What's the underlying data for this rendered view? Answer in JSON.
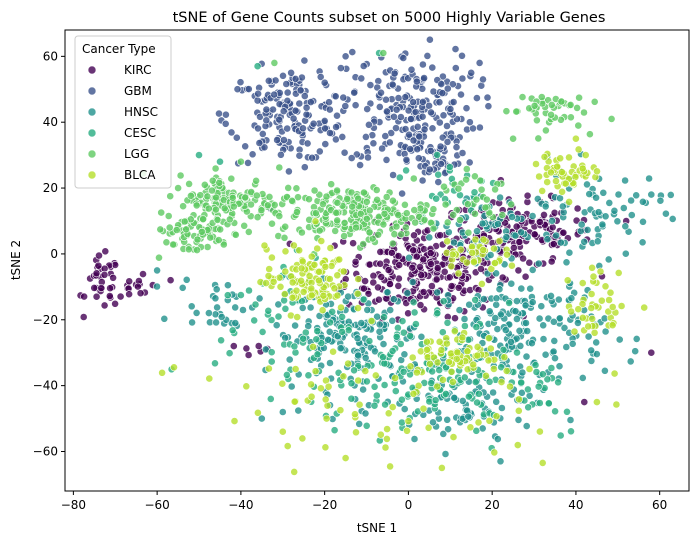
{
  "chart_data": {
    "type": "scatter",
    "title": "tSNE of Gene Counts subset on 5000 Highly Variable Genes",
    "xlabel": "tSNE 1",
    "ylabel": "tSNE 2",
    "xlim": [
      -82,
      67
    ],
    "ylim": [
      -72,
      68
    ],
    "xticks": [
      -80,
      -60,
      -40,
      -20,
      0,
      20,
      40,
      60
    ],
    "yticks": [
      -60,
      -40,
      -20,
      0,
      20,
      40,
      60
    ],
    "grid": false,
    "legend": {
      "title": "Cancer Type",
      "position": "top-left"
    },
    "series": [
      {
        "name": "KIRC",
        "color": "#440154",
        "clusters": [
          {
            "cx": 3,
            "cy": -5,
            "sx": 9,
            "sy": 7,
            "n": 260
          },
          {
            "cx": 26,
            "cy": 6,
            "sx": 9,
            "sy": 5,
            "n": 150
          },
          {
            "cx": -73,
            "cy": -9,
            "sx": 2,
            "sy": 4,
            "n": 35
          },
          {
            "cx": -64,
            "cy": -10,
            "sx": 3,
            "sy": 3,
            "n": 15
          },
          {
            "cx": -36,
            "cy": -29,
            "sx": 2,
            "sy": 1,
            "n": 6
          }
        ],
        "points": [
          [
            58,
            -30
          ],
          [
            42,
            -45
          ],
          [
            52,
            10
          ]
        ]
      },
      {
        "name": "GBM",
        "color": "#3b528b",
        "clusters": [
          {
            "cx": -29,
            "cy": 42,
            "sx": 7,
            "sy": 7,
            "n": 170
          },
          {
            "cx": 0,
            "cy": 44,
            "sx": 8,
            "sy": 9,
            "n": 210
          },
          {
            "cx": 6,
            "cy": 28,
            "sx": 5,
            "sy": 4,
            "n": 40
          }
        ],
        "points": [
          [
            -15,
            60
          ],
          [
            -28,
            55
          ],
          [
            15,
            55
          ],
          [
            17,
            58
          ],
          [
            -20,
            52
          ]
        ]
      },
      {
        "name": "HNSC",
        "color": "#21918c",
        "clusters": [
          {
            "cx": -14,
            "cy": -25,
            "sx": 9,
            "sy": 8,
            "n": 180
          },
          {
            "cx": 27,
            "cy": -23,
            "sx": 10,
            "sy": 9,
            "n": 190
          },
          {
            "cx": 12,
            "cy": -48,
            "sx": 9,
            "sy": 6,
            "n": 80
          },
          {
            "cx": 45,
            "cy": 12,
            "sx": 8,
            "sy": 7,
            "n": 70
          },
          {
            "cx": -45,
            "cy": -15,
            "sx": 5,
            "sy": 4,
            "n": 30
          },
          {
            "cx": 18,
            "cy": 8,
            "sx": 7,
            "sy": 6,
            "n": 60
          }
        ],
        "points": [
          [
            58,
            18
          ],
          [
            -60,
            -5
          ],
          [
            -35,
            -50
          ],
          [
            -30,
            -48
          ],
          [
            5,
            5
          ]
        ]
      },
      {
        "name": "CESC",
        "color": "#27ad81",
        "clusters": [
          {
            "cx": 0,
            "cy": -35,
            "sx": 12,
            "sy": 10,
            "n": 140
          },
          {
            "cx": -30,
            "cy": -20,
            "sx": 8,
            "sy": 10,
            "n": 50
          },
          {
            "cx": 25,
            "cy": -40,
            "sx": 10,
            "sy": 8,
            "n": 40
          },
          {
            "cx": 10,
            "cy": 20,
            "sx": 6,
            "sy": 6,
            "n": 25
          }
        ],
        "points": [
          [
            -50,
            30
          ],
          [
            -36,
            57
          ],
          [
            -7,
            61
          ],
          [
            -45,
            28
          ]
        ]
      },
      {
        "name": "LGG",
        "color": "#5ec962",
        "clusters": [
          {
            "cx": -43,
            "cy": 16,
            "sx": 6,
            "sy": 4,
            "n": 140
          },
          {
            "cx": -52,
            "cy": 6,
            "sx": 5,
            "sy": 3,
            "n": 60
          },
          {
            "cx": -13,
            "cy": 12,
            "sx": 9,
            "sy": 4,
            "n": 220
          },
          {
            "cx": 32,
            "cy": 44,
            "sx": 5,
            "sy": 3,
            "n": 45
          },
          {
            "cx": 16,
            "cy": 18,
            "sx": 5,
            "sy": 5,
            "n": 30
          }
        ],
        "points": [
          [
            -40,
            28
          ],
          [
            -55,
            20
          ],
          [
            -57,
            8
          ],
          [
            25,
            35
          ],
          [
            -32,
            58
          ],
          [
            -6,
            61
          ]
        ]
      },
      {
        "name": "BLCA",
        "color": "#b5de2b",
        "clusters": [
          {
            "cx": -24,
            "cy": -8,
            "sx": 5,
            "sy": 5,
            "n": 110
          },
          {
            "cx": 12,
            "cy": -30,
            "sx": 5,
            "sy": 3,
            "n": 60
          },
          {
            "cx": 38,
            "cy": 25,
            "sx": 4,
            "sy": 3,
            "n": 55
          },
          {
            "cx": 46,
            "cy": -15,
            "sx": 4,
            "sy": 5,
            "n": 40
          },
          {
            "cx": 15,
            "cy": 0,
            "sx": 4,
            "sy": 3,
            "n": 40
          },
          {
            "cx": 0,
            "cy": -45,
            "sx": 20,
            "sy": 10,
            "n": 50
          },
          {
            "cx": -20,
            "cy": -40,
            "sx": 15,
            "sy": 10,
            "n": 30
          }
        ],
        "points": [
          [
            8,
            -65
          ],
          [
            -15,
            -62
          ],
          [
            45,
            -45
          ],
          [
            -30,
            -54
          ],
          [
            40,
            35
          ]
        ]
      }
    ]
  }
}
